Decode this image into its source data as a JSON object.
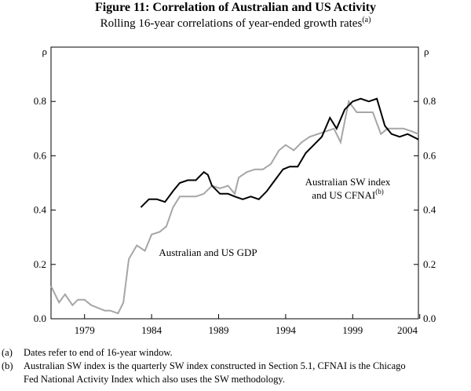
{
  "chart_data": {
    "type": "line",
    "title": "Figure 11: Correlation of Australian and US Activity",
    "subtitle": "Rolling 16-year correlations of year-ended growth rates",
    "subtitle_note": "(a)",
    "ylabel": "ρ",
    "y2label": "ρ",
    "xlim": [
      1976.5,
      2003.9
    ],
    "xticks": [
      1979,
      1984,
      1989,
      1994,
      1999,
      2004
    ],
    "ylim": [
      0,
      1
    ],
    "yticks": [
      {
        "value": 0,
        "label": "0.0"
      },
      0.2,
      0.4,
      0.6,
      0.8
    ],
    "series": [
      {
        "label_lines": [
          "Australian and US GDP"
        ],
        "color": "#a6a6a6",
        "x": [
          1976.5,
          1977.1,
          1977.55,
          1978.1,
          1978.5,
          1979.0,
          1979.5,
          1980.0,
          1980.5,
          1980.9,
          1981.5,
          1981.9,
          1982.3,
          1982.9,
          1983.5,
          1984.0,
          1984.6,
          1985.1,
          1985.6,
          1986.1,
          1986.7,
          1987.3,
          1987.9,
          1988.5,
          1989.1,
          1989.7,
          1990.2,
          1990.5,
          1991.1,
          1991.7,
          1992.3,
          1992.9,
          1993.5,
          1994.0,
          1994.6,
          1995.2,
          1995.8,
          1996.4,
          1997.0,
          1997.6,
          1998.1,
          1998.7,
          1999.3,
          1999.9,
          2000.5,
          2001.1,
          2001.6,
          2002.2,
          2002.8,
          2003.4,
          2003.9
        ],
        "values": [
          0.12,
          0.06,
          0.09,
          0.05,
          0.07,
          0.07,
          0.05,
          0.04,
          0.03,
          0.03,
          0.02,
          0.06,
          0.22,
          0.27,
          0.25,
          0.31,
          0.32,
          0.34,
          0.41,
          0.45,
          0.45,
          0.45,
          0.46,
          0.49,
          0.48,
          0.49,
          0.46,
          0.52,
          0.54,
          0.55,
          0.55,
          0.57,
          0.62,
          0.64,
          0.62,
          0.65,
          0.67,
          0.68,
          0.69,
          0.7,
          0.65,
          0.8,
          0.76,
          0.76,
          0.76,
          0.68,
          0.7,
          0.7,
          0.7,
          0.69,
          0.68
        ]
      },
      {
        "label_lines": [
          "Australian SW index",
          "and US CFNAI"
        ],
        "label_note": "(b)",
        "color": "#000000",
        "x": [
          1983.2,
          1983.8,
          1984.4,
          1985.0,
          1985.6,
          1986.1,
          1986.7,
          1987.3,
          1987.9,
          1988.2,
          1988.5,
          1989.1,
          1989.7,
          1990.2,
          1990.8,
          1991.4,
          1992.0,
          1992.6,
          1993.2,
          1993.8,
          1994.3,
          1994.9,
          1995.5,
          1996.1,
          1996.7,
          1997.3,
          1997.8,
          1998.4,
          1999.0,
          1999.6,
          2000.2,
          2000.8,
          2001.4,
          2001.9,
          2002.5,
          2003.1,
          2003.9
        ],
        "values": [
          0.41,
          0.44,
          0.44,
          0.43,
          0.47,
          0.5,
          0.51,
          0.51,
          0.54,
          0.53,
          0.49,
          0.46,
          0.46,
          0.45,
          0.44,
          0.45,
          0.44,
          0.47,
          0.51,
          0.55,
          0.56,
          0.56,
          0.61,
          0.64,
          0.67,
          0.74,
          0.7,
          0.77,
          0.8,
          0.81,
          0.8,
          0.81,
          0.71,
          0.68,
          0.67,
          0.68,
          0.66
        ]
      }
    ],
    "footnotes": [
      {
        "marker": "(a)",
        "lines": [
          "Dates refer to end of 16-year window."
        ]
      },
      {
        "marker": "(b)",
        "lines": [
          "Australian SW index is the quarterly SW index constructed in Section 5.1, CFNAI is the Chicago",
          "Fed National Activity Index which also uses the SW methodology."
        ]
      }
    ]
  }
}
